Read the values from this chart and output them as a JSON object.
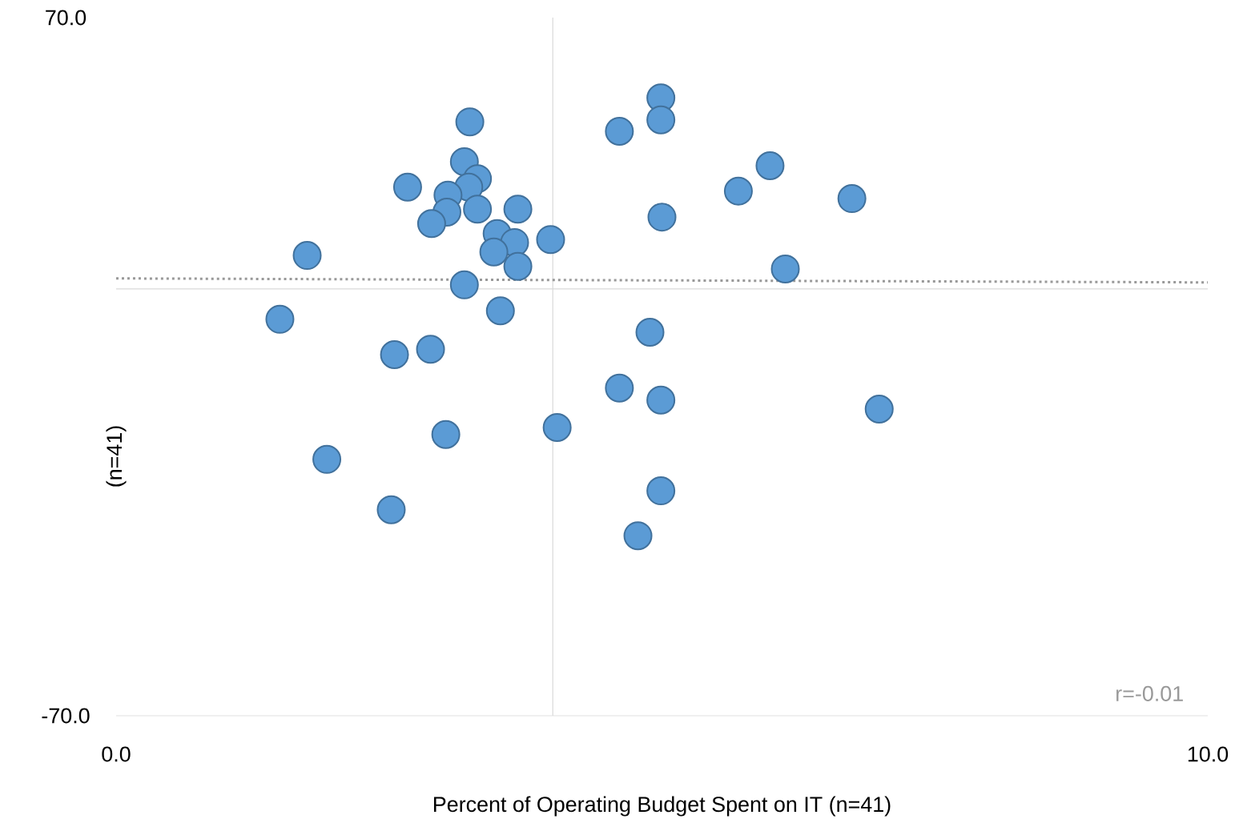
{
  "chart_data": {
    "type": "scatter",
    "xlabel": "Percent of Operating Budget Spent on IT (n=41)",
    "ylabel": "(n=41)",
    "xlim": [
      0,
      10
    ],
    "ylim": [
      -70,
      70
    ],
    "xticks": [
      {
        "value": 0,
        "label": "0.0"
      },
      {
        "value": 10,
        "label": "10.0"
      }
    ],
    "yticks": [
      {
        "value": -70,
        "label": "-70.0"
      },
      {
        "value": 70,
        "label": "70.0"
      }
    ],
    "marker": "circle",
    "series": [
      {
        "color": "#5b9bd5",
        "x": [
          4.99,
          4.99,
          4.61,
          3.24,
          3.19,
          3.31,
          3.23,
          3.04,
          2.67,
          3.03,
          2.89,
          3.31,
          3.68,
          3.49,
          3.65,
          3.46,
          3.68,
          3.98,
          1.75,
          3.19,
          3.52,
          1.5,
          2.55,
          2.88,
          4.89,
          4.61,
          4.99,
          4.04,
          3.02,
          1.93,
          2.52,
          4.99,
          4.78,
          6.99,
          6.13,
          5.0,
          5.7,
          5.99,
          6.74
        ],
        "values": [
          53.9,
          49.5,
          47.2,
          49.1,
          41.1,
          37.7,
          36.0,
          34.4,
          36.0,
          31.0,
          28.7,
          31.6,
          31.6,
          26.7,
          24.9,
          23.0,
          20.1,
          25.5,
          22.3,
          16.4,
          11.2,
          9.5,
          2.4,
          3.5,
          6.9,
          -4.3,
          -6.7,
          -12.2,
          -13.6,
          -18.6,
          -28.7,
          -24.9,
          -33.9,
          -8.5,
          19.6,
          30.0,
          35.2,
          40.3,
          33.7
        ]
      },
      {
        "type": "line",
        "color": "#999999",
        "line_style": "dotted",
        "marker": "none",
        "x": [
          0,
          10
        ],
        "values": [
          17.7,
          16.9
        ]
      }
    ],
    "ref_lines": [
      {
        "axis": "x",
        "value": 4.0,
        "color": "#d9d9d9"
      },
      {
        "axis": "y",
        "value": 15.6,
        "color": "#d9d9d9"
      }
    ],
    "annotations": [
      "r=-0.01"
    ]
  }
}
